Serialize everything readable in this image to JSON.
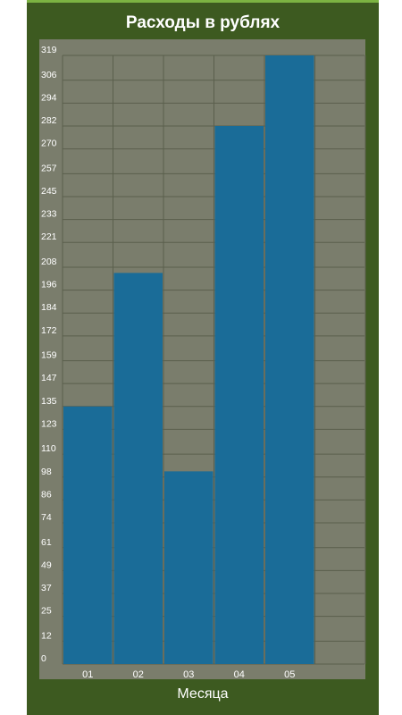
{
  "colors": {
    "panel": "#3d5a20",
    "plot_bg": "#7a7d6c",
    "bar": "#1a6c98",
    "grid": "#5a5f4c",
    "tick_text": "#ffffff"
  },
  "chart_data": {
    "type": "bar",
    "title": "Расходы в рублях",
    "xlabel": "Месяца",
    "ylabel": "",
    "categories": [
      "01",
      "02",
      "03",
      "04",
      "05",
      ""
    ],
    "values": [
      135,
      205,
      101,
      282,
      319,
      0
    ],
    "yticks": [
      0,
      12,
      25,
      37,
      49,
      61,
      74,
      86,
      98,
      110,
      123,
      135,
      147,
      159,
      172,
      184,
      196,
      208,
      221,
      233,
      245,
      257,
      270,
      282,
      294,
      306,
      319
    ],
    "ylim": [
      0,
      319
    ],
    "grid": true,
    "legend": "none"
  }
}
